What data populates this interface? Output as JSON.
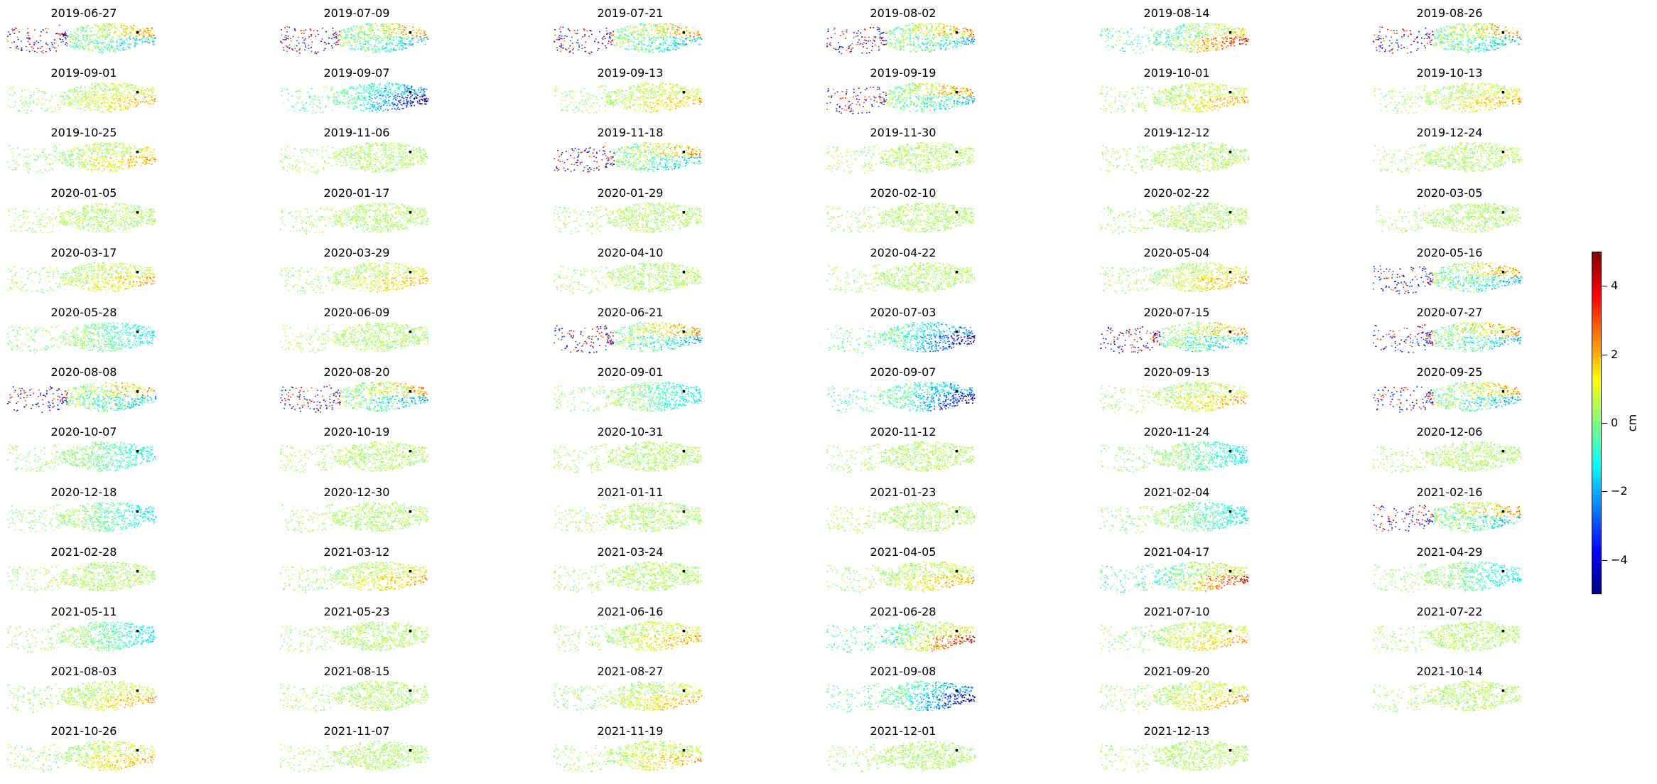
{
  "chart_data": {
    "type": "heatmap",
    "description_type": "small-multiples displacement maps",
    "layout": {
      "columns": 6,
      "rows": 13
    },
    "panels": [
      {
        "date": "2019-06-27",
        "pattern": "mixed-red-blue"
      },
      {
        "date": "2019-07-09",
        "pattern": "mixed-red-blue"
      },
      {
        "date": "2019-07-21",
        "pattern": "mixed-red-blue"
      },
      {
        "date": "2019-08-02",
        "pattern": "mixed-red-blue"
      },
      {
        "date": "2019-08-14",
        "pattern": "red-east"
      },
      {
        "date": "2019-08-26",
        "pattern": "mixed-red-blue"
      },
      {
        "date": "2019-09-01",
        "pattern": "warm-east"
      },
      {
        "date": "2019-09-07",
        "pattern": "blue-east"
      },
      {
        "date": "2019-09-13",
        "pattern": "warm-east"
      },
      {
        "date": "2019-09-19",
        "pattern": "mixed-red-blue"
      },
      {
        "date": "2019-10-01",
        "pattern": "warm-east"
      },
      {
        "date": "2019-10-13",
        "pattern": "warm-east"
      },
      {
        "date": "2019-10-25",
        "pattern": "warm-east"
      },
      {
        "date": "2019-11-06",
        "pattern": "neutral"
      },
      {
        "date": "2019-11-18",
        "pattern": "mixed-red-blue"
      },
      {
        "date": "2019-11-30",
        "pattern": "neutral"
      },
      {
        "date": "2019-12-12",
        "pattern": "neutral"
      },
      {
        "date": "2019-12-24",
        "pattern": "neutral"
      },
      {
        "date": "2020-01-05",
        "pattern": "neutral"
      },
      {
        "date": "2020-01-17",
        "pattern": "neutral"
      },
      {
        "date": "2020-01-29",
        "pattern": "neutral"
      },
      {
        "date": "2020-02-10",
        "pattern": "neutral"
      },
      {
        "date": "2020-02-22",
        "pattern": "neutral"
      },
      {
        "date": "2020-03-05",
        "pattern": "neutral"
      },
      {
        "date": "2020-03-17",
        "pattern": "warm-east"
      },
      {
        "date": "2020-03-29",
        "pattern": "warm-east"
      },
      {
        "date": "2020-04-10",
        "pattern": "neutral"
      },
      {
        "date": "2020-04-22",
        "pattern": "neutral"
      },
      {
        "date": "2020-05-04",
        "pattern": "warm-east"
      },
      {
        "date": "2020-05-16",
        "pattern": "mixed-red-blue"
      },
      {
        "date": "2020-05-28",
        "pattern": "cool-east"
      },
      {
        "date": "2020-06-09",
        "pattern": "neutral"
      },
      {
        "date": "2020-06-21",
        "pattern": "mixed-red-blue"
      },
      {
        "date": "2020-07-03",
        "pattern": "blue-east"
      },
      {
        "date": "2020-07-15",
        "pattern": "mixed-red-blue"
      },
      {
        "date": "2020-07-27",
        "pattern": "mixed-red-blue"
      },
      {
        "date": "2020-08-08",
        "pattern": "mixed-red-blue"
      },
      {
        "date": "2020-08-20",
        "pattern": "mixed-red-blue"
      },
      {
        "date": "2020-09-01",
        "pattern": "cool-east"
      },
      {
        "date": "2020-09-07",
        "pattern": "blue-east"
      },
      {
        "date": "2020-09-13",
        "pattern": "warm-east"
      },
      {
        "date": "2020-09-25",
        "pattern": "mixed-red-blue"
      },
      {
        "date": "2020-10-07",
        "pattern": "cool-east"
      },
      {
        "date": "2020-10-19",
        "pattern": "neutral"
      },
      {
        "date": "2020-10-31",
        "pattern": "neutral"
      },
      {
        "date": "2020-11-12",
        "pattern": "neutral"
      },
      {
        "date": "2020-11-24",
        "pattern": "cool-east"
      },
      {
        "date": "2020-12-06",
        "pattern": "neutral"
      },
      {
        "date": "2020-12-18",
        "pattern": "cool-east"
      },
      {
        "date": "2020-12-30",
        "pattern": "neutral"
      },
      {
        "date": "2021-01-11",
        "pattern": "neutral"
      },
      {
        "date": "2021-01-23",
        "pattern": "neutral"
      },
      {
        "date": "2021-02-04",
        "pattern": "cool-east"
      },
      {
        "date": "2021-02-16",
        "pattern": "mixed-red-blue"
      },
      {
        "date": "2021-02-28",
        "pattern": "neutral"
      },
      {
        "date": "2021-03-12",
        "pattern": "warm-east"
      },
      {
        "date": "2021-03-24",
        "pattern": "neutral"
      },
      {
        "date": "2021-04-05",
        "pattern": "warm-east"
      },
      {
        "date": "2021-04-17",
        "pattern": "red-east"
      },
      {
        "date": "2021-04-29",
        "pattern": "cool-east"
      },
      {
        "date": "2021-05-11",
        "pattern": "cool-east"
      },
      {
        "date": "2021-05-23",
        "pattern": "neutral"
      },
      {
        "date": "2021-06-16",
        "pattern": "warm-east"
      },
      {
        "date": "2021-06-28",
        "pattern": "red-east"
      },
      {
        "date": "2021-07-10",
        "pattern": "warm-east"
      },
      {
        "date": "2021-07-22",
        "pattern": "neutral"
      },
      {
        "date": "2021-08-03",
        "pattern": "warm-east"
      },
      {
        "date": "2021-08-15",
        "pattern": "neutral"
      },
      {
        "date": "2021-08-27",
        "pattern": "warm-east"
      },
      {
        "date": "2021-09-08",
        "pattern": "blue-east"
      },
      {
        "date": "2021-09-20",
        "pattern": "warm-east"
      },
      {
        "date": "2021-10-14",
        "pattern": "neutral"
      },
      {
        "date": "2021-10-26",
        "pattern": "warm-east"
      },
      {
        "date": "2021-11-07",
        "pattern": "neutral"
      },
      {
        "date": "2021-11-19",
        "pattern": "warm-east"
      },
      {
        "date": "2021-12-01",
        "pattern": "neutral"
      },
      {
        "date": "2021-12-13",
        "pattern": "neutral"
      }
    ],
    "colorbar": {
      "colormap": "jet",
      "range": [
        -5,
        5
      ],
      "ticks": [
        {
          "value": 4,
          "label": "4"
        },
        {
          "value": 2,
          "label": "2"
        },
        {
          "value": 0,
          "label": "0"
        },
        {
          "value": -2,
          "label": "−2"
        },
        {
          "value": -4,
          "label": "−4"
        }
      ],
      "unit": "cm",
      "colors": [
        "#00007f",
        "#0000ff",
        "#007fff",
        "#00ffff",
        "#7fff7f",
        "#ffff00",
        "#ff7f00",
        "#ff0000",
        "#7f0000"
      ]
    },
    "reference_point_color": "#000000",
    "grid": false,
    "axes": "off"
  }
}
